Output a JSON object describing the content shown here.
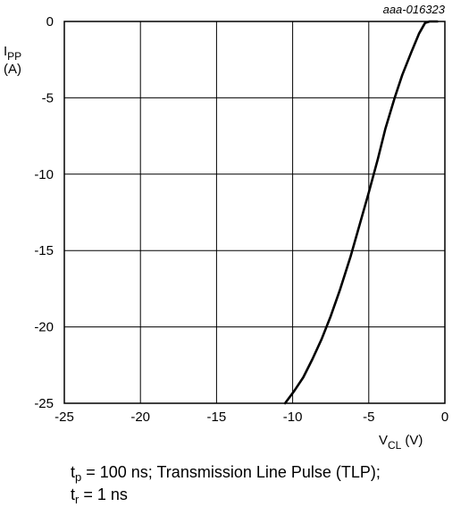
{
  "figure_code": "aaa-016323",
  "y_axis": {
    "symbol": "I",
    "subscript": "PP",
    "unit": "(A)"
  },
  "x_axis": {
    "symbol": "V",
    "subscript": "CL",
    "unit": "(V)"
  },
  "caption": {
    "line1": {
      "symbol": "t",
      "subscript": "p",
      "text": " = 100 ns; Transmission Line Pulse (TLP);"
    },
    "line2": {
      "symbol": "t",
      "subscript": "r",
      "text": " = 1 ns"
    }
  },
  "chart_data": {
    "type": "line",
    "xlabel": "V_CL (V)",
    "ylabel": "I_PP (A)",
    "xlim": [
      -25,
      0
    ],
    "ylim": [
      -25,
      0
    ],
    "x_ticks": [
      "-25",
      "-20",
      "-15",
      "-10",
      "-5",
      "0"
    ],
    "y_ticks": [
      "0",
      "-5",
      "-10",
      "-15",
      "-20",
      "-25"
    ],
    "grid": true,
    "series": [
      {
        "color": "#000000",
        "points": [
          [
            -10.5,
            -25
          ],
          [
            -9.9,
            -24.2
          ],
          [
            -9.3,
            -23.3
          ],
          [
            -8.7,
            -22.1
          ],
          [
            -8.1,
            -20.8
          ],
          [
            -7.5,
            -19.3
          ],
          [
            -6.9,
            -17.6
          ],
          [
            -6.2,
            -15.4
          ],
          [
            -5.6,
            -13.3
          ],
          [
            -5.0,
            -11.2
          ],
          [
            -4.4,
            -9.0
          ],
          [
            -3.9,
            -7.0
          ],
          [
            -3.3,
            -5.0
          ],
          [
            -2.8,
            -3.5
          ],
          [
            -2.2,
            -2.0
          ],
          [
            -1.7,
            -0.8
          ],
          [
            -1.3,
            -0.1
          ],
          [
            -1.0,
            0.0
          ],
          [
            -0.5,
            0.0
          ]
        ]
      }
    ]
  }
}
